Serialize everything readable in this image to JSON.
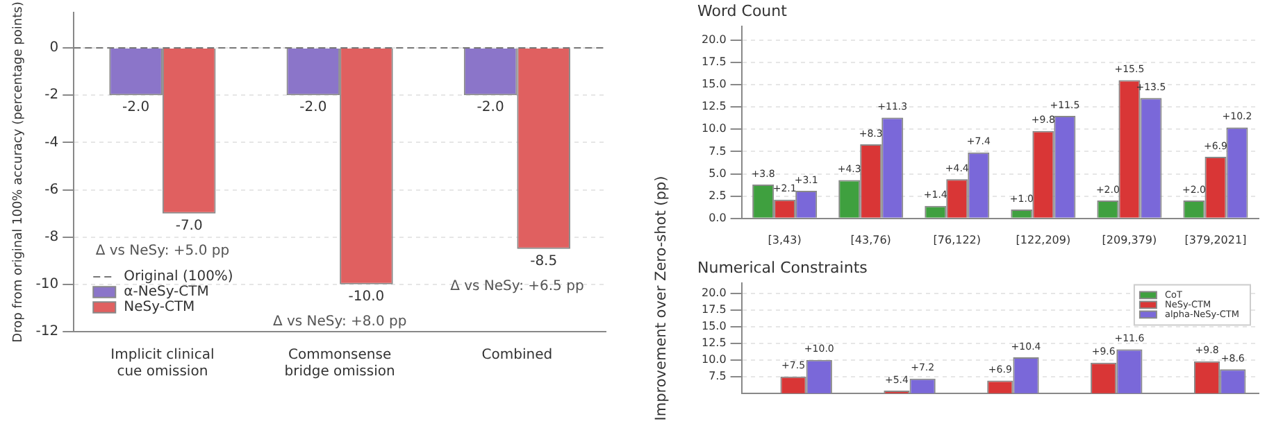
{
  "chart_data": [
    {
      "type": "bar",
      "ylabel": "Drop from original 100% accuracy (percentage points)",
      "categories": [
        "Implicit clinical cue omission",
        "Commonsense bridge omission",
        "Combined"
      ],
      "series": [
        {
          "name": "α-NeSy-CTM",
          "color": "#8b75c9",
          "values": [
            -2.0,
            -2.0,
            -2.0
          ],
          "value_labels": [
            "-2.0",
            "-2.0",
            "-2.0"
          ]
        },
        {
          "name": "NeSy-CTM",
          "color": "#e06060",
          "values": [
            -7.0,
            -10.0,
            -8.5
          ],
          "value_labels": [
            "-7.0",
            "-10.0",
            "-8.5"
          ]
        }
      ],
      "ylim": [
        -12,
        1.5
      ],
      "yticks": [
        -12,
        -10,
        -8,
        -6,
        -4,
        -2,
        0
      ],
      "ref_lines": [
        {
          "axis": "y",
          "value": 0,
          "label": "Original (100%)",
          "color": "#777777",
          "line_style": "dashed"
        }
      ],
      "annotations": [
        "Δ vs NeSy: +5.0 pp",
        "Δ vs NeSy: +8.0 pp",
        "Δ vs NeSy: +6.5 pp"
      ],
      "grid": "y",
      "legend": "bottom left"
    },
    {
      "type": "bar",
      "title": "Word Count",
      "categories": [
        "[3,43)",
        "[43,76)",
        "[76,122)",
        "[122,209)",
        "[209,379)",
        "[379,2021]"
      ],
      "series": [
        {
          "color": "#3fa03f",
          "values": [
            3.8,
            4.3,
            1.4,
            1.0,
            2.0,
            2.0
          ],
          "value_labels": [
            "+3.8",
            "+4.3",
            "+1.4",
            "+1.0",
            "+2.0",
            "+2.0"
          ]
        },
        {
          "color": "#d93636",
          "values": [
            2.1,
            8.3,
            4.4,
            9.8,
            15.5,
            6.9
          ],
          "value_labels": [
            "+2.1",
            "+8.3",
            "+4.4",
            "+9.8",
            "+15.5",
            "+6.9"
          ]
        },
        {
          "color": "#7a68d9",
          "values": [
            3.1,
            11.3,
            7.4,
            11.5,
            13.5,
            10.2
          ],
          "value_labels": [
            "+3.1",
            "+11.3",
            "+7.4",
            "+11.5",
            "+13.5",
            "+10.2"
          ]
        }
      ],
      "ylim": [
        0,
        21.5
      ],
      "yticks": [
        {
          "value": 0,
          "label": "0.0"
        },
        {
          "value": 2.5,
          "label": "2.5"
        },
        {
          "value": 5,
          "label": "5.0"
        },
        {
          "value": 7.5,
          "label": "7.5"
        },
        {
          "value": 10,
          "label": "10.0"
        },
        {
          "value": 12.5,
          "label": "12.5"
        },
        {
          "value": 15,
          "label": "15.0"
        },
        {
          "value": 17.5,
          "label": "17.5"
        },
        {
          "value": 20,
          "label": "20.0"
        }
      ],
      "grid": "y"
    },
    {
      "type": "bar",
      "title": "Numerical Constraints",
      "ylabel": "Improvement over Zero-shot (pp)",
      "categories": [
        null,
        null,
        null,
        null,
        null
      ],
      "series": [
        {
          "name": "CoT",
          "color": "#3fa03f",
          "values": [
            null,
            null,
            null,
            null,
            null
          ]
        },
        {
          "name": "NeSy-CTM",
          "color": "#d93636",
          "values": [
            7.5,
            5.4,
            6.9,
            9.6,
            9.8
          ],
          "value_labels": [
            "+7.5",
            "+5.4",
            "+6.9",
            "+9.6",
            "+9.8"
          ]
        },
        {
          "name": "alpha-NeSy-CTM",
          "color": "#7a68d9",
          "values": [
            10.0,
            7.2,
            10.4,
            11.6,
            8.6
          ],
          "value_labels": [
            "+10.0",
            "+7.2",
            "+10.4",
            "+11.6",
            "+8.6"
          ]
        }
      ],
      "ylim": [
        5,
        21.5
      ],
      "yticks": [
        {
          "value": 7.5,
          "label": "7.5"
        },
        {
          "value": 10,
          "label": "10.0"
        },
        {
          "value": 12.5,
          "label": "12.5"
        },
        {
          "value": 15,
          "label": "15.0"
        },
        {
          "value": 17.5,
          "label": "17.5"
        },
        {
          "value": 20,
          "label": "20.0"
        }
      ],
      "grid": "y",
      "legend": "top right"
    }
  ]
}
